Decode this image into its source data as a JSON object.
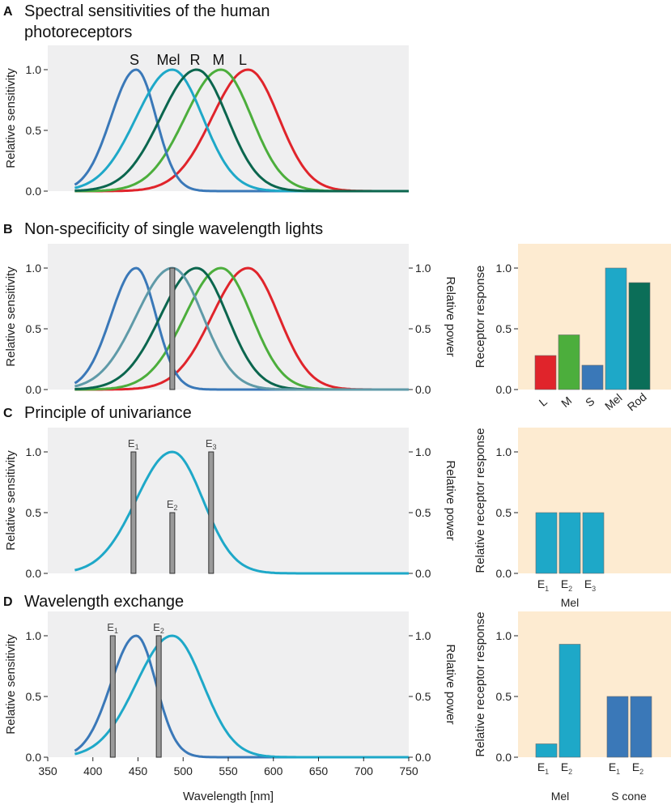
{
  "panels": {
    "A": {
      "letter": "A",
      "title_line1": "Spectral sensitivities of the human",
      "title_line2": "photoreceptors"
    },
    "B": {
      "letter": "B",
      "title": "Non-specificity of single wavelength lights"
    },
    "C": {
      "letter": "C",
      "title": "Principle of univariance"
    },
    "D": {
      "letter": "D",
      "title": "Wavelength exchange"
    }
  },
  "labels": {
    "rel_sensitivity": "Relative sensitivity",
    "rel_power": "Relative power",
    "receptor_response": "Receptor response",
    "rel_receptor_response": "Relative receptor response",
    "wavelength": "Wavelength [nm]"
  },
  "colors": {
    "S": "#3a78b8",
    "Mel": "#1ea8c8",
    "R": "#0b664e",
    "M": "#4cae3c",
    "L": "#e0242b",
    "Rod": "#0b6e58",
    "grey_curve": "#5f9aa8",
    "plot_bg": "#efeff0",
    "bar_bg": "#fdebd1",
    "light_bar": "#9a9a9a"
  },
  "chart_data": [
    {
      "id": "A",
      "type": "line",
      "title": "Spectral sensitivities of the human photoreceptors",
      "xlabel": "",
      "ylabel": "Relative sensitivity",
      "xlim": [
        350,
        750
      ],
      "ylim": [
        0,
        1.2
      ],
      "yticks": [
        0.0,
        0.5,
        1.0
      ],
      "yticklabels": [
        "0.0",
        "0.5",
        "1.0"
      ],
      "series": [
        {
          "name": "S",
          "peak": 448,
          "curve_labels": "S"
        },
        {
          "name": "Mel",
          "peak": 488
        },
        {
          "name": "R",
          "peak": 515
        },
        {
          "name": "M",
          "peak": 542
        },
        {
          "name": "L",
          "peak": 572
        }
      ],
      "curve_labels": [
        "S",
        "Mel",
        "R",
        "M",
        "L"
      ]
    },
    {
      "id": "B-left",
      "type": "line",
      "title": "Non-specificity of single wavelength lights",
      "ylabel": "Relative sensitivity",
      "y2label": "Relative power",
      "xlim": [
        350,
        750
      ],
      "ylim": [
        0,
        1.2
      ],
      "yticks": [
        0.0,
        0.5,
        1.0
      ],
      "yticklabels": [
        "0.0",
        "0.5",
        "1.0"
      ],
      "series": [
        {
          "name": "S",
          "peak": 448
        },
        {
          "name": "Mel",
          "peak": 488
        },
        {
          "name": "R",
          "peak": 515
        },
        {
          "name": "M",
          "peak": 542
        },
        {
          "name": "L",
          "peak": 572
        }
      ],
      "lights": [
        {
          "label": "",
          "wavelength": 488,
          "power": 1.0
        }
      ]
    },
    {
      "id": "B-right",
      "type": "bar",
      "ylabel": "Receptor response",
      "categories": [
        "L",
        "M",
        "S",
        "Mel",
        "Rod"
      ],
      "values": [
        0.28,
        0.45,
        0.2,
        1.0,
        0.88
      ],
      "ylim": [
        0,
        1.2
      ],
      "yticklabels": [
        "0.0",
        "0.5",
        "1.0"
      ]
    },
    {
      "id": "C-left",
      "type": "line",
      "title": "Principle of univariance",
      "ylabel": "Relative sensitivity",
      "y2label": "Relative power",
      "xlim": [
        350,
        750
      ],
      "ylim": [
        0,
        1.2
      ],
      "yticklabels": [
        "0.0",
        "0.5",
        "1.0"
      ],
      "series": [
        {
          "name": "Mel",
          "peak": 488
        }
      ],
      "lights": [
        {
          "label": "E",
          "sub": "1",
          "wavelength": 445,
          "power": 1.0
        },
        {
          "label": "E",
          "sub": "2",
          "wavelength": 488,
          "power": 0.5
        },
        {
          "label": "E",
          "sub": "3",
          "wavelength": 531,
          "power": 1.0
        }
      ]
    },
    {
      "id": "C-right",
      "type": "bar",
      "ylabel": "Relative receptor response",
      "categories": [
        {
          "label": "E",
          "sub": "1"
        },
        {
          "label": "E",
          "sub": "2"
        },
        {
          "label": "E",
          "sub": "3"
        }
      ],
      "group": "Mel",
      "values": [
        0.5,
        0.5,
        0.5
      ],
      "ylim": [
        0,
        1.2
      ],
      "yticklabels": [
        "0.0",
        "0.5",
        "1.0"
      ]
    },
    {
      "id": "D-left",
      "type": "line",
      "title": "Wavelength exchange",
      "ylabel": "Relative sensitivity",
      "y2label": "Relative power",
      "xlabel": "Wavelength [nm]",
      "xlim": [
        350,
        750
      ],
      "ylim": [
        0,
        1.2
      ],
      "xticks": [
        350,
        400,
        450,
        500,
        550,
        600,
        650,
        700,
        750
      ],
      "xticklabels": [
        "350",
        "400",
        "450",
        "500",
        "550",
        "600",
        "650",
        "700",
        "750"
      ],
      "yticklabels": [
        "0.0",
        "0.5",
        "1.0"
      ],
      "series": [
        {
          "name": "S",
          "peak": 448
        },
        {
          "name": "Mel",
          "peak": 488
        }
      ],
      "lights": [
        {
          "label": "E",
          "sub": "1",
          "wavelength": 422,
          "power": 1.0
        },
        {
          "label": "E",
          "sub": "2",
          "wavelength": 473,
          "power": 1.0
        }
      ]
    },
    {
      "id": "D-right",
      "type": "bar",
      "ylabel": "Relative receptor response",
      "groups": [
        {
          "name": "Mel",
          "categories": [
            {
              "label": "E",
              "sub": "1"
            },
            {
              "label": "E",
              "sub": "2"
            }
          ],
          "values": [
            0.11,
            0.93
          ]
        },
        {
          "name": "S cone",
          "categories": [
            {
              "label": "E",
              "sub": "1"
            },
            {
              "label": "E",
              "sub": "2"
            }
          ],
          "values": [
            0.5,
            0.5
          ]
        }
      ],
      "ylim": [
        0,
        1.2
      ],
      "yticklabels": [
        "0.0",
        "0.5",
        "1.0"
      ]
    }
  ]
}
